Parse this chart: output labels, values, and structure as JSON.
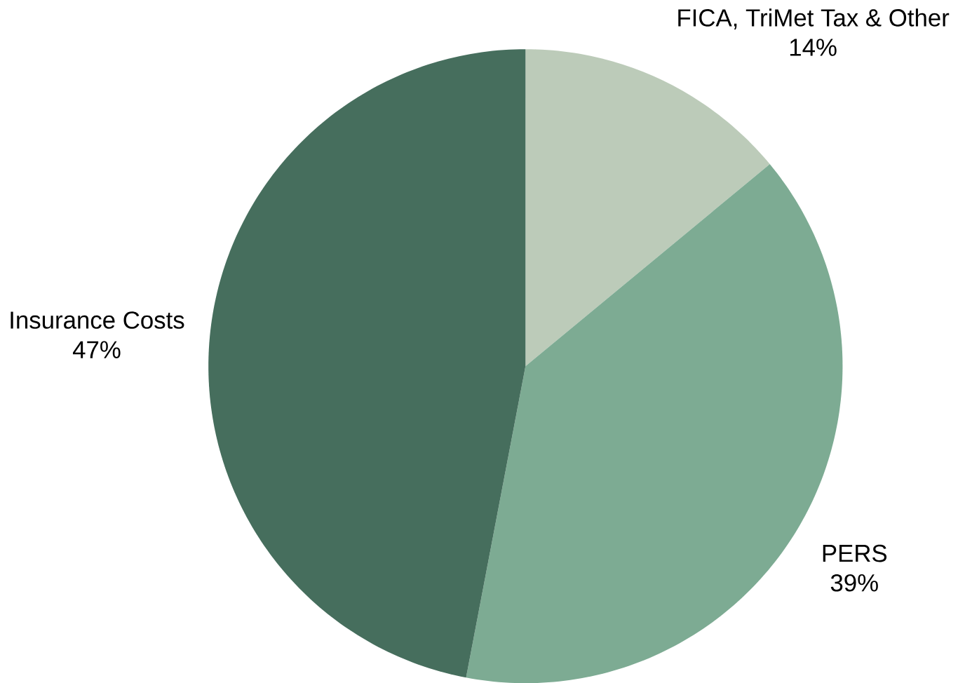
{
  "chart_data": {
    "type": "pie",
    "categories": [
      "FICA, TriMet Tax & Other",
      "PERS",
      "Insurance Costs"
    ],
    "values": [
      14,
      39,
      47
    ],
    "value_labels": [
      "14%",
      "39%",
      "47%"
    ],
    "colors": [
      "#bccbb9",
      "#7dab93",
      "#466e5d"
    ]
  }
}
